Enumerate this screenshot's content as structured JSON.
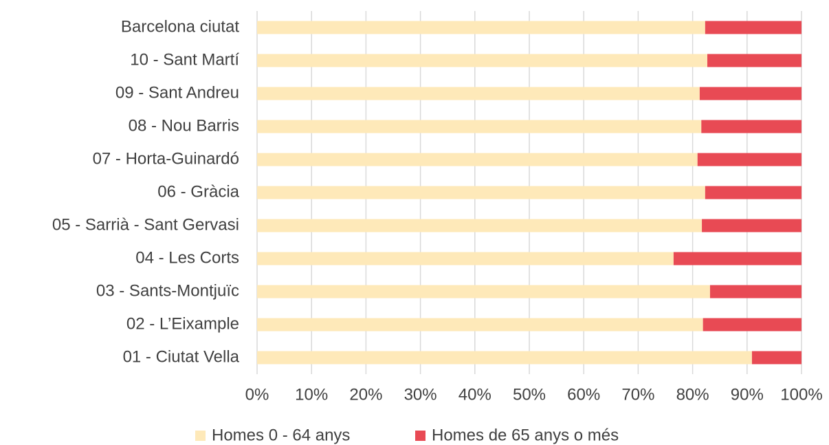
{
  "chart_data": {
    "type": "bar",
    "orientation": "horizontal",
    "stacked": true,
    "categories": [
      "Barcelona ciutat",
      "10 - Sant Martí",
      "09 - Sant Andreu",
      "08 - Nou Barris",
      "07 - Horta-Guinardó",
      "06 - Gràcia",
      "05 - Sarrià - Sant Gervasi",
      "04 - Les Corts",
      "03 - Sants-Montjuïc",
      "02 - L’Eixample",
      "01 - Ciutat Vella"
    ],
    "series": [
      {
        "name": "Homes 0 - 64 anys",
        "color": "#fee9b9",
        "values": [
          82.3,
          82.7,
          81.3,
          81.6,
          80.9,
          82.3,
          81.7,
          76.5,
          83.2,
          81.9,
          90.9
        ]
      },
      {
        "name": "Homes de 65 anys o més",
        "color": "#e84a54",
        "values": [
          17.7,
          17.3,
          18.7,
          18.4,
          19.1,
          17.7,
          18.3,
          23.5,
          16.8,
          18.1,
          9.1
        ]
      }
    ],
    "xlim": [
      0,
      100
    ],
    "xticks": [
      {
        "value": 0,
        "label": "0%"
      },
      {
        "value": 10,
        "label": "10%"
      },
      {
        "value": 20,
        "label": "20%"
      },
      {
        "value": 30,
        "label": "30%"
      },
      {
        "value": 40,
        "label": "40%"
      },
      {
        "value": 50,
        "label": "50%"
      },
      {
        "value": 60,
        "label": "60%"
      },
      {
        "value": 70,
        "label": "70%"
      },
      {
        "value": 80,
        "label": "80%"
      },
      {
        "value": 90,
        "label": "90%"
      },
      {
        "value": 100,
        "label": "100%"
      }
    ],
    "grid": true,
    "legend": "bottom"
  }
}
